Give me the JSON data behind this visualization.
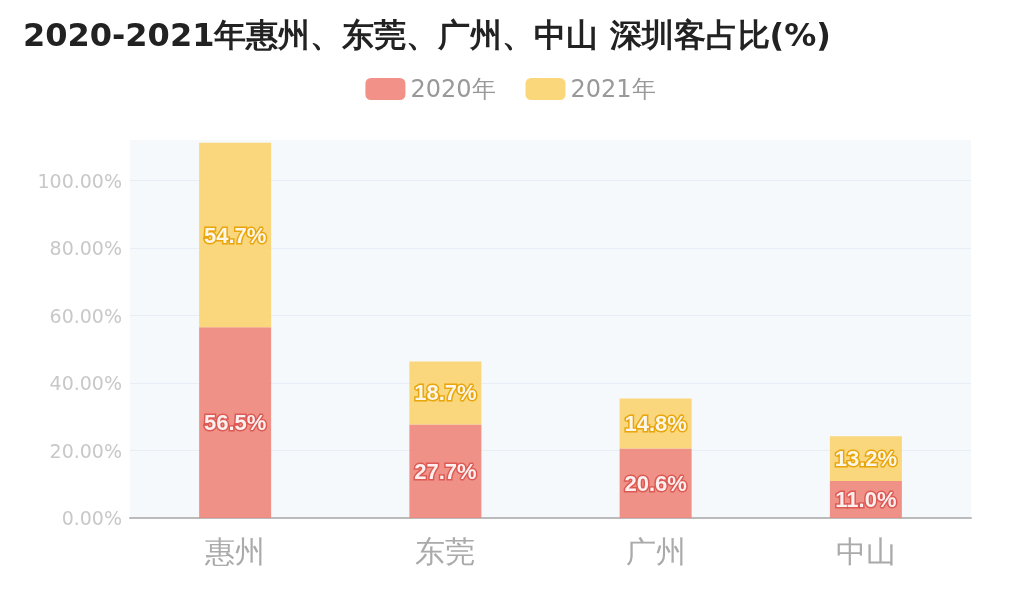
{
  "chart_data": {
    "type": "bar",
    "title": "2020-2021年惠州、东莞、广州、中山 深圳客占比(%)",
    "categories": [
      "惠州",
      "东莞",
      "广州",
      "中山"
    ],
    "stacked": true,
    "series": [
      {
        "name": "2020年",
        "color": "#f0857a",
        "values": [
          56.5,
          27.7,
          20.6,
          11.0
        ],
        "value_labels": [
          "56.5%",
          "27.7%",
          "20.6%",
          "11.0%"
        ]
      },
      {
        "name": "2021年",
        "color": "#fbd36e",
        "values": [
          54.7,
          18.7,
          14.8,
          13.2
        ],
        "value_labels": [
          "54.7%",
          "18.7%",
          "14.8%",
          "13.2%"
        ]
      }
    ],
    "ylim": [
      0,
      112
    ],
    "yticks": [
      {
        "value": 0,
        "label": "0.00%"
      },
      {
        "value": 20,
        "label": "20.00%"
      },
      {
        "value": 40,
        "label": "40.00%"
      },
      {
        "value": 60,
        "label": "60.00%"
      },
      {
        "value": 80,
        "label": "80.00%"
      },
      {
        "value": 100,
        "label": "100.00%"
      }
    ],
    "grid": "y",
    "legend": "top"
  }
}
